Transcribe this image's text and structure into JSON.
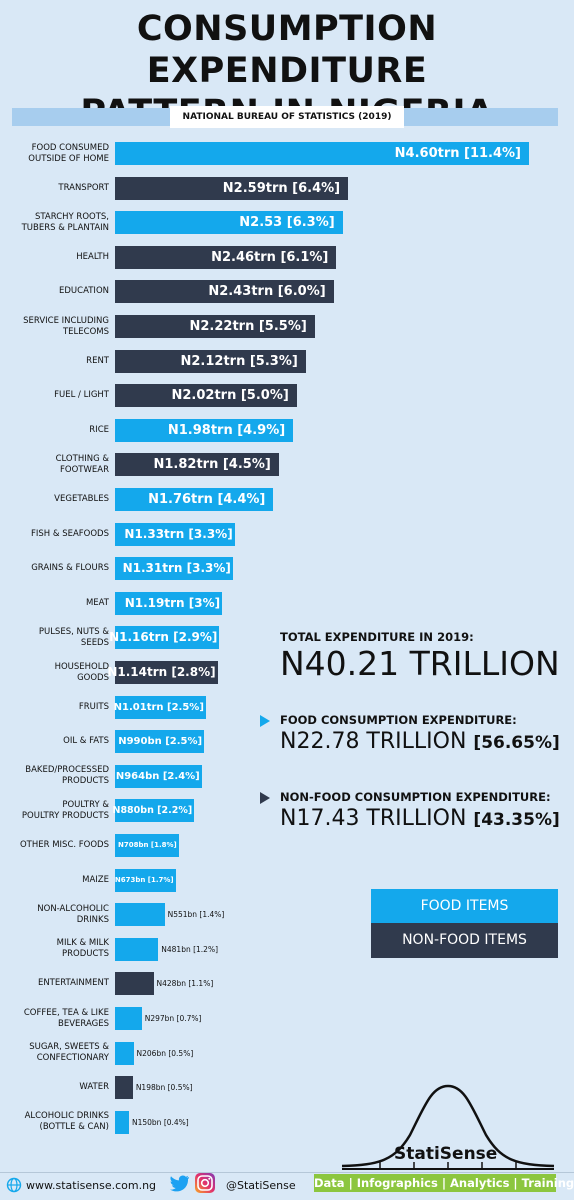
{
  "header": {
    "title_line1": "CONSUMPTION EXPENDITURE",
    "title_line2": "PATTERN IN NIGERIA",
    "source": "NATIONAL BUREAU OF STATISTICS (2019)"
  },
  "colors": {
    "food": "#14a8ec",
    "non_food": "#303a4d",
    "background": "#d9e8f6",
    "brand": "#8cc63f"
  },
  "chart_data": {
    "type": "bar",
    "orientation": "horizontal",
    "unit": "naira",
    "categories": [
      "FOOD CONSUMED OUTSIDE OF HOME",
      "TRANSPORT",
      "STARCHY ROOTS, TUBERS & PLANTAIN",
      "HEALTH",
      "EDUCATION",
      "SERVICE INCLUDING TELECOMS",
      "RENT",
      "FUEL / LIGHT",
      "RICE",
      "CLOTHING & FOOTWEAR",
      "VEGETABLES",
      "FISH & SEAFOODS",
      "GRAINS & FLOURS",
      "MEAT",
      "PULSES, NUTS & SEEDS",
      "HOUSEHOLD GOODS",
      "FRUITS",
      "OIL & FATS",
      "BAKED/PROCESSED PRODUCTS",
      "POULTRY & POULTRY PRODUCTS",
      "OTHER MISC. FOODS",
      "MAIZE",
      "NON-ALCOHOLIC DRINKS",
      "MILK & MILK PRODUCTS",
      "ENTERTAINMENT",
      "COFFEE, TEA & LIKE BEVERAGES",
      "SUGAR, SWEETS & CONFECTIONARY",
      "WATER",
      "ALCOHOLIC DRINKS (BOTTLE & CAN)"
    ],
    "bars": [
      {
        "lines": [
          "FOOD CONSUMED",
          "OUTSIDE OF HOME"
        ],
        "value": 4.6,
        "label": "N4.60trn [11.4%]",
        "group": "food"
      },
      {
        "lines": [
          "TRANSPORT"
        ],
        "value": 2.59,
        "label": "N2.59trn [6.4%]",
        "group": "non_food"
      },
      {
        "lines": [
          "STARCHY ROOTS,",
          "TUBERS & PLANTAIN"
        ],
        "value": 2.53,
        "label": "N2.53 [6.3%]",
        "group": "food"
      },
      {
        "lines": [
          "HEALTH"
        ],
        "value": 2.46,
        "label": "N2.46trn [6.1%]",
        "group": "non_food"
      },
      {
        "lines": [
          "EDUCATION"
        ],
        "value": 2.43,
        "label": "N2.43trn [6.0%]",
        "group": "non_food"
      },
      {
        "lines": [
          "SERVICE INCLUDING",
          "TELECOMS"
        ],
        "value": 2.22,
        "label": "N2.22trn [5.5%]",
        "group": "non_food"
      },
      {
        "lines": [
          "RENT"
        ],
        "value": 2.12,
        "label": "N2.12trn [5.3%]",
        "group": "non_food"
      },
      {
        "lines": [
          "FUEL / LIGHT"
        ],
        "value": 2.02,
        "label": "N2.02trn [5.0%]",
        "group": "non_food"
      },
      {
        "lines": [
          "RICE"
        ],
        "value": 1.98,
        "label": "N1.98trn [4.9%]",
        "group": "food"
      },
      {
        "lines": [
          "CLOTHING &",
          "FOOTWEAR"
        ],
        "value": 1.82,
        "label": "N1.82trn [4.5%]",
        "group": "non_food"
      },
      {
        "lines": [
          "VEGETABLES"
        ],
        "value": 1.76,
        "label": "N1.76trn [4.4%]",
        "group": "food"
      },
      {
        "lines": [
          "FISH & SEAFOODS"
        ],
        "value": 1.33,
        "label": "N1.33trn [3.3%]",
        "group": "food"
      },
      {
        "lines": [
          "GRAINS & FLOURS"
        ],
        "value": 1.31,
        "label": "N1.31trn [3.3%]",
        "group": "food"
      },
      {
        "lines": [
          "MEAT"
        ],
        "value": 1.19,
        "label": "N1.19trn [3%]",
        "group": "food"
      },
      {
        "lines": [
          "PULSES, NUTS &",
          "SEEDS"
        ],
        "value": 1.16,
        "label": "N1.16trn  [2.9%]",
        "group": "food"
      },
      {
        "lines": [
          "HOUSEHOLD",
          "GOODS"
        ],
        "value": 1.14,
        "label": "N1.14trn [2.8%]",
        "group": "non_food"
      },
      {
        "lines": [
          "FRUITS"
        ],
        "value": 1.01,
        "label": "N1.01trn [2.5%]",
        "group": "food"
      },
      {
        "lines": [
          "OIL & FATS"
        ],
        "value": 0.99,
        "label": "N990bn [2.5%]",
        "group": "food"
      },
      {
        "lines": [
          "BAKED/PROCESSED",
          "PRODUCTS"
        ],
        "value": 0.964,
        "label": "N964bn [2.4%]",
        "group": "food"
      },
      {
        "lines": [
          "POULTRY &",
          "POULTRY PRODUCTS"
        ],
        "value": 0.88,
        "label": "N880bn [2.2%]",
        "group": "food"
      },
      {
        "lines": [
          "OTHER MISC. FOODS"
        ],
        "value": 0.708,
        "label": "N708bn [1.8%]",
        "group": "food"
      },
      {
        "lines": [
          "MAIZE"
        ],
        "value": 0.673,
        "label": "N673bn [1.7%]",
        "group": "food"
      },
      {
        "lines": [
          "NON-ALCOHOLIC",
          "DRINKS"
        ],
        "value": 0.551,
        "label": "N551bn [1.4%]",
        "group": "food"
      },
      {
        "lines": [
          "MILK & MILK",
          "PRODUCTS"
        ],
        "value": 0.481,
        "label": "N481bn [1.2%]",
        "group": "food"
      },
      {
        "lines": [
          "ENTERTAINMENT"
        ],
        "value": 0.428,
        "label": "N428bn [1.1%]",
        "group": "non_food"
      },
      {
        "lines": [
          "COFFEE, TEA & LIKE",
          "BEVERAGES"
        ],
        "value": 0.297,
        "label": "N297bn [0.7%]",
        "group": "food"
      },
      {
        "lines": [
          "SUGAR, SWEETS &",
          "CONFECTIONARY"
        ],
        "value": 0.206,
        "label": "N206bn [0.5%]",
        "group": "food"
      },
      {
        "lines": [
          "WATER"
        ],
        "value": 0.198,
        "label": "N198bn [0.5%]",
        "group": "non_food"
      },
      {
        "lines": [
          "ALCOHOLIC DRINKS",
          "(BOTTLE & CAN)"
        ],
        "value": 0.15,
        "label": "N150bn [0.4%]",
        "group": "food"
      }
    ],
    "legend": [
      {
        "label": "FOOD ITEMS",
        "group": "food"
      },
      {
        "label": "NON-FOOD ITEMS",
        "group": "non_food"
      }
    ]
  },
  "summary": {
    "total_label": "TOTAL EXPENDITURE IN 2019:",
    "total_value": "N40.21 TRILLION",
    "food_label": "FOOD CONSUMPTION EXPENDITURE:",
    "food_value": "N22.78 TRILLION",
    "food_pct": "[56.65%]",
    "nonfood_label": "NON-FOOD CONSUMPTION EXPENDITURE:",
    "nonfood_value": "N17.43 TRILLION",
    "nonfood_pct": "[43.35%]"
  },
  "footer": {
    "website": "www.statisense.com.ng",
    "handle": "@StatiSense",
    "brand": "StatiSense",
    "tagline": "Data | Infographics | Analytics | Training",
    "icons": [
      "globe-icon",
      "twitter-icon",
      "instagram-icon",
      "bell-curve-logo"
    ]
  }
}
